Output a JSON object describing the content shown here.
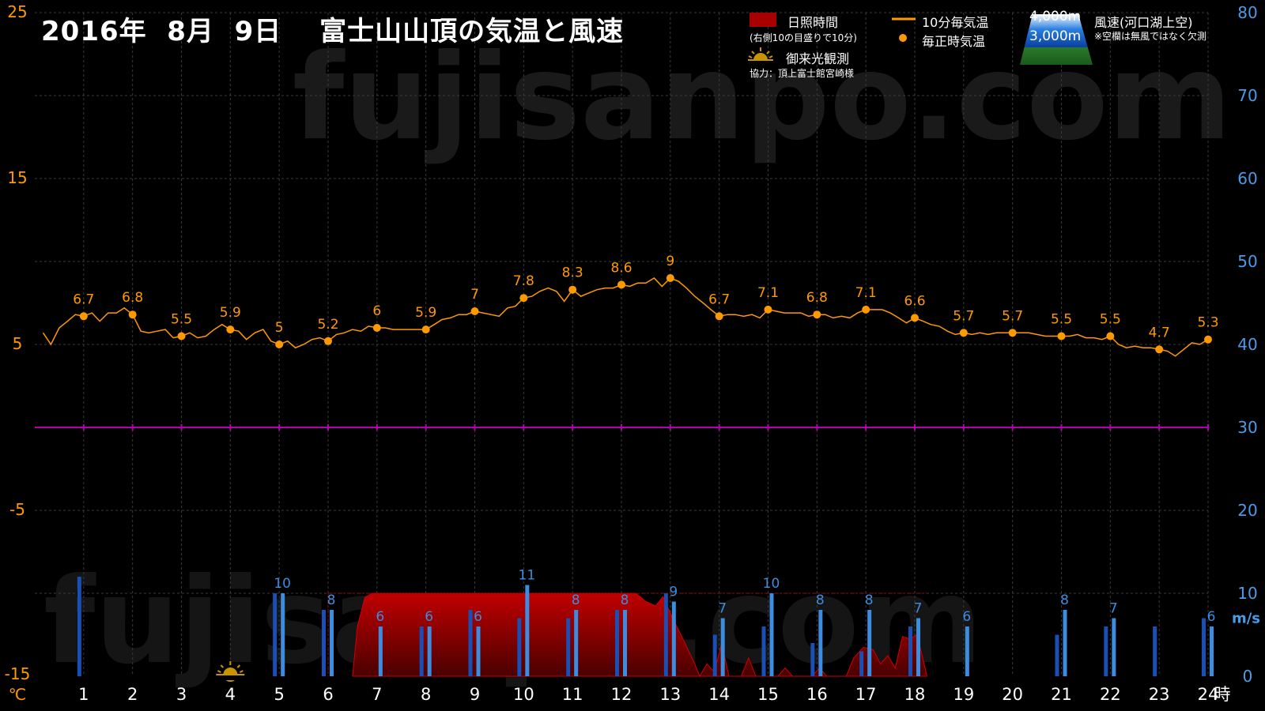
{
  "title": "2016年  8月  9日　 富士山山頂の気温と風速",
  "watermark": "fujisanpo.com",
  "legend": {
    "sunshine": "日照時間",
    "sunshine_note": "(右側10の目盛りで10分)",
    "temp_10min": "10分毎気温",
    "temp_hourly": "毎正時気温",
    "sunrise": "御来光観測",
    "cooperation": "協力：頂上富士館宮崎様",
    "alt_4000": "4,000m",
    "alt_3000": "3,000m",
    "wind_label": "風速(河口湖上空)",
    "wind_note": "※空欄は無風ではなく欠測"
  },
  "colors": {
    "temperature": "#ff9900",
    "wind_4000": "#1a4fb5",
    "wind_3000": "#3c8ce0",
    "sunshine": "#a80000",
    "zero_line": "#b000b0",
    "left_axis": "#ff9900",
    "right_axis": "#4a9be8"
  },
  "chart_data": {
    "type": "line",
    "x_unit": "時",
    "y_left_unit": "℃",
    "y_right_unit": "m/s",
    "y_left_range": [
      -15,
      25
    ],
    "y_right_range": [
      0,
      80
    ],
    "x_range": [
      0,
      24
    ],
    "x_ticks": [
      "1",
      "2",
      "3",
      "4",
      "5",
      "6",
      "7",
      "8",
      "9",
      "10",
      "11",
      "12",
      "13",
      "14",
      "15",
      "16",
      "17",
      "18",
      "19",
      "20",
      "21",
      "22",
      "23",
      "24"
    ],
    "y_left_ticks": [
      "25",
      "15",
      "5",
      "-5",
      "-15"
    ],
    "y_right_ticks": [
      "80",
      "70",
      "60",
      "50",
      "40",
      "30",
      "20",
      "10",
      "0"
    ],
    "hourly_temperature": [
      {
        "hour": 1,
        "value": 6.7
      },
      {
        "hour": 2,
        "value": 6.8
      },
      {
        "hour": 3,
        "value": 5.5
      },
      {
        "hour": 4,
        "value": 5.9
      },
      {
        "hour": 5,
        "value": 5
      },
      {
        "hour": 6,
        "value": 5.2
      },
      {
        "hour": 7,
        "value": 6
      },
      {
        "hour": 8,
        "value": 5.9
      },
      {
        "hour": 9,
        "value": 7
      },
      {
        "hour": 10,
        "value": 7.8
      },
      {
        "hour": 11,
        "value": 8.3
      },
      {
        "hour": 12,
        "value": 8.6
      },
      {
        "hour": 13,
        "value": 9
      },
      {
        "hour": 14,
        "value": 6.7
      },
      {
        "hour": 15,
        "value": 7.1
      },
      {
        "hour": 16,
        "value": 6.8
      },
      {
        "hour": 17,
        "value": 7.1
      },
      {
        "hour": 18,
        "value": 6.6
      },
      {
        "hour": 19,
        "value": 5.7
      },
      {
        "hour": 20,
        "value": 5.7
      },
      {
        "hour": 21,
        "value": 5.5
      },
      {
        "hour": 22,
        "value": 5.5
      },
      {
        "hour": 23,
        "value": 4.7
      },
      {
        "hour": 24,
        "value": 5.3
      }
    ],
    "temperature_10min": [
      [
        0.17,
        5.7
      ],
      [
        0.33,
        5
      ],
      [
        0.5,
        6
      ],
      [
        0.67,
        6.4
      ],
      [
        0.83,
        6.8
      ],
      [
        1,
        6.7
      ],
      [
        1.17,
        6.9
      ],
      [
        1.33,
        6.4
      ],
      [
        1.5,
        6.9
      ],
      [
        1.67,
        6.9
      ],
      [
        1.83,
        7.2
      ],
      [
        2,
        6.8
      ],
      [
        2.17,
        5.8
      ],
      [
        2.33,
        5.7
      ],
      [
        2.5,
        5.8
      ],
      [
        2.67,
        5.9
      ],
      [
        2.83,
        5.4
      ],
      [
        3,
        5.5
      ],
      [
        3.17,
        5.7
      ],
      [
        3.33,
        5.4
      ],
      [
        3.5,
        5.5
      ],
      [
        3.67,
        5.9
      ],
      [
        3.83,
        6.2
      ],
      [
        4,
        5.9
      ],
      [
        4.17,
        5.8
      ],
      [
        4.33,
        5.3
      ],
      [
        4.5,
        5.7
      ],
      [
        4.67,
        5.9
      ],
      [
        4.83,
        5.2
      ],
      [
        5,
        5
      ],
      [
        5.17,
        5.2
      ],
      [
        5.33,
        4.8
      ],
      [
        5.5,
        5
      ],
      [
        5.67,
        5.3
      ],
      [
        5.83,
        5.4
      ],
      [
        6,
        5.2
      ],
      [
        6.17,
        5.6
      ],
      [
        6.33,
        5.7
      ],
      [
        6.5,
        5.9
      ],
      [
        6.67,
        5.8
      ],
      [
        6.83,
        6.1
      ],
      [
        7,
        6
      ],
      [
        7.17,
        6
      ],
      [
        7.33,
        5.9
      ],
      [
        7.5,
        5.9
      ],
      [
        7.67,
        5.9
      ],
      [
        7.83,
        5.9
      ],
      [
        8,
        5.9
      ],
      [
        8.17,
        6.2
      ],
      [
        8.33,
        6.5
      ],
      [
        8.5,
        6.6
      ],
      [
        8.67,
        6.8
      ],
      [
        8.83,
        6.8
      ],
      [
        9,
        7
      ],
      [
        9.17,
        6.9
      ],
      [
        9.33,
        6.8
      ],
      [
        9.5,
        6.7
      ],
      [
        9.67,
        7.2
      ],
      [
        9.83,
        7.3
      ],
      [
        10,
        7.8
      ],
      [
        10.17,
        7.9
      ],
      [
        10.33,
        8.2
      ],
      [
        10.5,
        8.4
      ],
      [
        10.67,
        8.2
      ],
      [
        10.83,
        7.6
      ],
      [
        11,
        8.3
      ],
      [
        11.17,
        7.9
      ],
      [
        11.33,
        8.1
      ],
      [
        11.5,
        8.3
      ],
      [
        11.67,
        8.4
      ],
      [
        11.83,
        8.4
      ],
      [
        12,
        8.6
      ],
      [
        12.17,
        8.5
      ],
      [
        12.33,
        8.7
      ],
      [
        12.5,
        8.7
      ],
      [
        12.67,
        9
      ],
      [
        12.83,
        8.5
      ],
      [
        13,
        9
      ],
      [
        13.17,
        8.8
      ],
      [
        13.33,
        8.4
      ],
      [
        13.5,
        7.9
      ],
      [
        13.67,
        7.5
      ],
      [
        13.83,
        7.1
      ],
      [
        14,
        6.7
      ],
      [
        14.17,
        6.8
      ],
      [
        14.33,
        6.8
      ],
      [
        14.5,
        6.7
      ],
      [
        14.67,
        6.8
      ],
      [
        14.83,
        6.6
      ],
      [
        15,
        7.1
      ],
      [
        15.17,
        7
      ],
      [
        15.33,
        6.9
      ],
      [
        15.5,
        6.9
      ],
      [
        15.67,
        6.9
      ],
      [
        15.83,
        6.7
      ],
      [
        16,
        6.8
      ],
      [
        16.17,
        6.8
      ],
      [
        16.33,
        6.6
      ],
      [
        16.5,
        6.7
      ],
      [
        16.67,
        6.6
      ],
      [
        16.83,
        6.9
      ],
      [
        17,
        7.1
      ],
      [
        17.17,
        7.1
      ],
      [
        17.33,
        7.1
      ],
      [
        17.5,
        6.9
      ],
      [
        17.67,
        6.6
      ],
      [
        17.83,
        6.3
      ],
      [
        18,
        6.6
      ],
      [
        18.17,
        6.4
      ],
      [
        18.33,
        6.2
      ],
      [
        18.5,
        6.1
      ],
      [
        18.67,
        5.8
      ],
      [
        18.83,
        5.6
      ],
      [
        19,
        5.7
      ],
      [
        19.17,
        5.6
      ],
      [
        19.33,
        5.7
      ],
      [
        19.5,
        5.6
      ],
      [
        19.67,
        5.7
      ],
      [
        19.83,
        5.7
      ],
      [
        20,
        5.7
      ],
      [
        20.17,
        5.7
      ],
      [
        20.33,
        5.7
      ],
      [
        20.5,
        5.6
      ],
      [
        20.67,
        5.5
      ],
      [
        20.83,
        5.5
      ],
      [
        21,
        5.5
      ],
      [
        21.17,
        5.5
      ],
      [
        21.33,
        5.6
      ],
      [
        21.5,
        5.4
      ],
      [
        21.67,
        5.4
      ],
      [
        21.83,
        5.3
      ],
      [
        22,
        5.5
      ],
      [
        22.17,
        5
      ],
      [
        22.33,
        4.8
      ],
      [
        22.5,
        4.9
      ],
      [
        22.67,
        4.8
      ],
      [
        22.83,
        4.8
      ],
      [
        23,
        4.7
      ],
      [
        23.17,
        4.6
      ],
      [
        23.33,
        4.3
      ],
      [
        23.5,
        4.7
      ],
      [
        23.67,
        5.1
      ],
      [
        23.83,
        5
      ],
      [
        24,
        5.3
      ]
    ],
    "wind_3000": [
      {
        "hour": 5,
        "value": 10,
        "label": "10"
      },
      {
        "hour": 6,
        "value": 8,
        "label": "8"
      },
      {
        "hour": 7,
        "value": 6,
        "label": "6"
      },
      {
        "hour": 8,
        "value": 6,
        "label": "6"
      },
      {
        "hour": 9,
        "value": 6,
        "label": "6"
      },
      {
        "hour": 10,
        "value": 11,
        "label": "11"
      },
      {
        "hour": 11,
        "value": 8,
        "label": "8"
      },
      {
        "hour": 12,
        "value": 8,
        "label": "8"
      },
      {
        "hour": 13,
        "value": 9,
        "label": "9"
      },
      {
        "hour": 14,
        "value": 7,
        "label": "7"
      },
      {
        "hour": 15,
        "value": 10,
        "label": "10"
      },
      {
        "hour": 16,
        "value": 8,
        "label": "8"
      },
      {
        "hour": 17,
        "value": 8,
        "label": "8"
      },
      {
        "hour": 18,
        "value": 7,
        "label": "7"
      },
      {
        "hour": 19,
        "value": 6,
        "label": "6"
      },
      {
        "hour": 21,
        "value": 8,
        "label": "8"
      },
      {
        "hour": 22,
        "value": 7,
        "label": "7"
      },
      {
        "hour": 24,
        "value": 6,
        "label": "6"
      }
    ],
    "wind_4000": [
      {
        "hour": 1,
        "value": 12
      },
      {
        "hour": 5,
        "value": 10
      },
      {
        "hour": 6,
        "value": 8
      },
      {
        "hour": 8,
        "value": 6
      },
      {
        "hour": 9,
        "value": 8
      },
      {
        "hour": 10,
        "value": 7
      },
      {
        "hour": 11,
        "value": 7
      },
      {
        "hour": 12,
        "value": 8
      },
      {
        "hour": 13,
        "value": 10
      },
      {
        "hour": 14,
        "value": 5
      },
      {
        "hour": 15,
        "value": 6
      },
      {
        "hour": 16,
        "value": 4
      },
      {
        "hour": 17,
        "value": 3
      },
      {
        "hour": 18,
        "value": 6
      },
      {
        "hour": 21,
        "value": 5
      },
      {
        "hour": 22,
        "value": 6
      },
      {
        "hour": 23,
        "value": 6
      },
      {
        "hour": 24,
        "value": 7
      }
    ],
    "sunshine_minutes": [
      [
        6.5,
        0
      ],
      [
        6.6,
        6
      ],
      [
        6.75,
        9.5
      ],
      [
        6.9,
        10
      ],
      [
        7.5,
        10
      ],
      [
        8,
        10
      ],
      [
        9,
        10
      ],
      [
        10,
        10
      ],
      [
        11,
        10
      ],
      [
        12,
        10
      ],
      [
        12.3,
        10
      ],
      [
        12.5,
        9
      ],
      [
        12.7,
        8.5
      ],
      [
        12.85,
        9.6
      ],
      [
        13.05,
        7
      ],
      [
        13.3,
        4
      ],
      [
        13.5,
        1.5
      ],
      [
        13.6,
        0
      ],
      [
        13.75,
        1.5
      ],
      [
        13.9,
        0.5
      ],
      [
        14.05,
        4
      ],
      [
        14.2,
        0
      ],
      [
        14.45,
        0
      ],
      [
        14.6,
        2.2
      ],
      [
        14.75,
        0
      ],
      [
        15.2,
        0
      ],
      [
        15.35,
        1
      ],
      [
        15.5,
        0
      ],
      [
        15.9,
        0
      ],
      [
        16.05,
        1
      ],
      [
        16.2,
        0
      ],
      [
        16.6,
        0
      ],
      [
        16.75,
        2.2
      ],
      [
        16.95,
        3.5
      ],
      [
        17.15,
        3.2
      ],
      [
        17.3,
        1.5
      ],
      [
        17.45,
        2.5
      ],
      [
        17.6,
        1
      ],
      [
        17.75,
        4.8
      ],
      [
        17.9,
        4.5
      ],
      [
        18.05,
        5
      ],
      [
        18.25,
        0
      ]
    ],
    "sunrise_hour": 4,
    "zero_line": 0
  }
}
